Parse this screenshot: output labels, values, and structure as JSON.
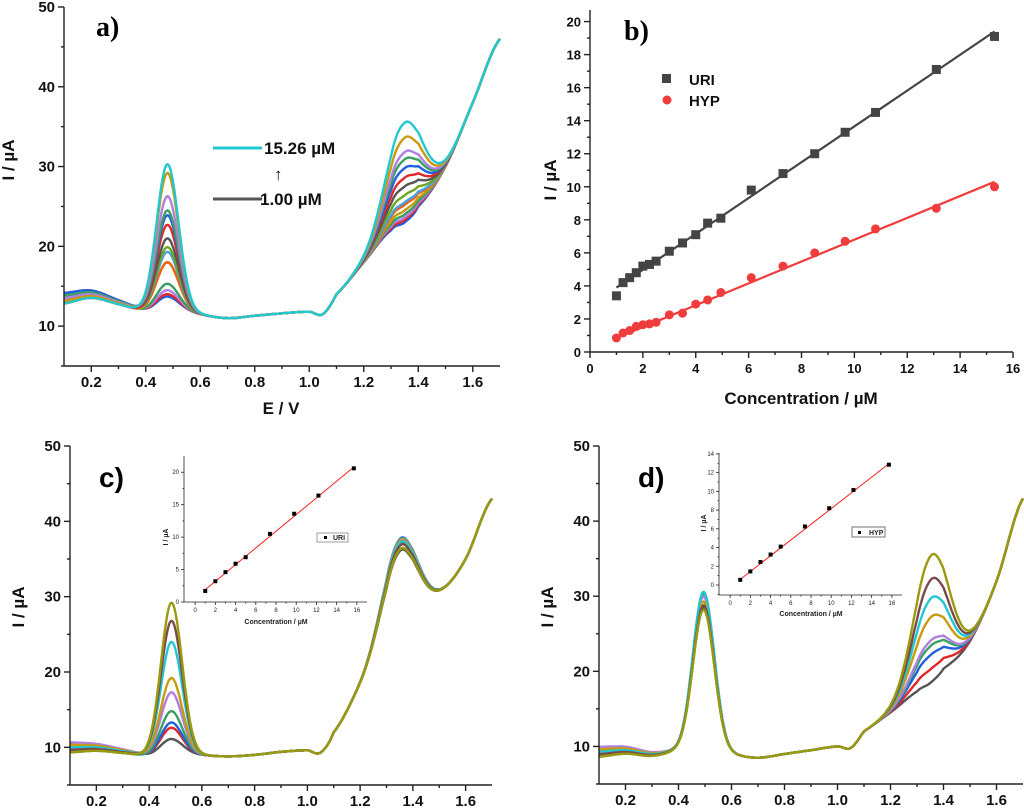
{
  "chart_data": [
    {
      "panel": "a)",
      "type": "line",
      "xlabel": "E / V",
      "ylabel": "I / µA",
      "xlim": [
        0.1,
        1.7
      ],
      "ylim": [
        5,
        50
      ],
      "xticks": [
        "0.2",
        "0.4",
        "0.6",
        "0.8",
        "1.0",
        "1.2",
        "1.4",
        "1.6"
      ],
      "yticks": [
        "10",
        "20",
        "30",
        "40",
        "50"
      ],
      "annotation_high": "15.26 µM",
      "annotation_arrow": "↑",
      "annotation_low": "1.00 µM",
      "annotation_high_color": "#22c8d0",
      "annotation_low_color": "#555555",
      "baseline": {
        "x": [
          0.1,
          0.2,
          0.3,
          0.4,
          0.48,
          0.6,
          0.7,
          0.8,
          0.9,
          1.0,
          1.05,
          1.1,
          1.2,
          1.3,
          1.35,
          1.4,
          1.5,
          1.6,
          1.7
        ],
        "y": [
          13.5,
          14,
          13,
          12,
          12.5,
          11.5,
          11,
          11.3,
          11.6,
          11.8,
          11.5,
          14,
          18,
          22,
          23,
          25,
          30,
          38,
          46
        ]
      },
      "peak1_potential_V": 0.48,
      "peak2_potential_V": 1.35,
      "series": [
        {
          "color": "#22c8d0",
          "peak1": 30.3,
          "peak2": 35.5
        },
        {
          "color": "#c89b10",
          "peak1": 29.2,
          "peak2": 33.6
        },
        {
          "color": "#b07fe0",
          "peak1": 26.3,
          "peak2": 31.8
        },
        {
          "color": "#3aa060",
          "peak1": 24.5,
          "peak2": 30.9
        },
        {
          "color": "#2060e0",
          "peak1": 23.9,
          "peak2": 29.8
        },
        {
          "color": "#e02828",
          "peak1": 22.7,
          "peak2": 28.6
        },
        {
          "color": "#555555",
          "peak1": 21.0,
          "peak2": 27.5
        },
        {
          "color": "#6aa820",
          "peak1": 19.9,
          "peak2": 26.4
        },
        {
          "color": "#4aa0e0",
          "peak1": 19.3,
          "peak2": 25.5
        },
        {
          "color": "#f06010",
          "peak1": 18.0,
          "peak2": 25.2
        },
        {
          "color": "#c89b10",
          "peak1": 18.0,
          "peak2": 24.5
        },
        {
          "color": "#3aa060",
          "peak1": 15.3,
          "peak2": 24.0
        },
        {
          "color": "#b07fe0",
          "peak1": 14.5,
          "peak2": 23.6
        },
        {
          "color": "#e02828",
          "peak1": 14.0,
          "peak2": 23.3
        },
        {
          "color": "#2060e0",
          "peak1": 13.7,
          "peak2": 23.0
        }
      ]
    },
    {
      "panel": "b)",
      "type": "scatter",
      "xlabel": "Concentration / µM",
      "ylabel": "I / µA",
      "xlim": [
        0,
        16
      ],
      "ylim": [
        0,
        20.7
      ],
      "xticks": [
        "0",
        "2",
        "4",
        "6",
        "8",
        "10",
        "12",
        "14",
        "16"
      ],
      "yticks": [
        "0",
        "2",
        "4",
        "6",
        "8",
        "10",
        "12",
        "14",
        "16",
        "18",
        "20"
      ],
      "legend_position": "top-left",
      "series": [
        {
          "name": "URI",
          "marker": "square",
          "color": "#444444",
          "x": [
            1.0,
            1.25,
            1.5,
            1.75,
            2.0,
            2.25,
            2.5,
            3.0,
            3.5,
            4.0,
            4.45,
            4.95,
            6.1,
            7.3,
            8.5,
            9.65,
            10.8,
            13.1,
            15.3
          ],
          "y": [
            3.4,
            4.2,
            4.5,
            4.8,
            5.2,
            5.3,
            5.5,
            6.1,
            6.6,
            7.1,
            7.8,
            8.1,
            9.8,
            10.8,
            12.0,
            13.3,
            14.5,
            17.1,
            19.1
          ],
          "fit": {
            "x": [
              1.0,
              15.3
            ],
            "y": [
              3.9,
              19.4
            ]
          }
        },
        {
          "name": "HYP",
          "marker": "circle",
          "color": "#f03c3c",
          "x": [
            1.0,
            1.25,
            1.5,
            1.75,
            2.0,
            2.25,
            2.5,
            3.0,
            3.5,
            4.0,
            4.45,
            4.95,
            6.1,
            7.3,
            8.5,
            9.65,
            10.8,
            13.1,
            15.3
          ],
          "y": [
            0.85,
            1.15,
            1.3,
            1.55,
            1.65,
            1.7,
            1.8,
            2.25,
            2.35,
            2.9,
            3.15,
            3.6,
            4.5,
            5.2,
            6.0,
            6.7,
            7.45,
            8.7,
            10.0
          ],
          "fit": {
            "x": [
              1.0,
              15.3
            ],
            "y": [
              0.85,
              10.3
            ]
          }
        }
      ]
    },
    {
      "panel": "c)",
      "type": "line",
      "ylabel": "I / µA",
      "xlim": [
        0.1,
        1.7
      ],
      "ylim": [
        5,
        50
      ],
      "xticks": [
        "0.2",
        "0.4",
        "0.6",
        "0.8",
        "1.0",
        "1.2",
        "1.4",
        "1.6"
      ],
      "yticks": [
        "10",
        "20",
        "30",
        "40",
        "50"
      ],
      "baseline": {
        "x": [
          0.1,
          0.2,
          0.3,
          0.4,
          0.48,
          0.6,
          0.7,
          0.8,
          0.9,
          1.0,
          1.05,
          1.1,
          1.2,
          1.3,
          1.35,
          1.4,
          1.5,
          1.6,
          1.7
        ],
        "y": [
          10,
          10,
          9.5,
          9,
          9.5,
          9,
          8.8,
          9,
          9.4,
          9.6,
          9.3,
          12,
          18,
          24,
          26,
          27,
          30,
          35,
          43
        ]
      },
      "peak1_potential_V": 0.485,
      "peak2_potential_V": 1.355,
      "series": [
        {
          "color": "#9a9a10",
          "peak1": 29.2,
          "peak2": 36.4
        },
        {
          "color": "#7b4b4b",
          "peak1": 26.8,
          "peak2": 36.9
        },
        {
          "color": "#22c8d0",
          "peak1": 24.0,
          "peak2": 37.3
        },
        {
          "color": "#c89b10",
          "peak1": 19.2,
          "peak2": 37.5
        },
        {
          "color": "#b07fe0",
          "peak1": 17.3,
          "peak2": 37.6
        },
        {
          "color": "#3aa060",
          "peak1": 14.8,
          "peak2": 37.7
        },
        {
          "color": "#2060e0",
          "peak1": 13.3,
          "peak2": 37.8
        },
        {
          "color": "#e02828",
          "peak1": 12.6,
          "peak2": 37.2
        },
        {
          "color": "#555555",
          "peak1": 11.1,
          "peak2": 36.2
        }
      ],
      "inset": {
        "type": "scatter",
        "xlabel": "Concentration / µM",
        "ylabel": "I / µA",
        "xlim": [
          -1.1,
          17
        ],
        "ylim": [
          0,
          22.5
        ],
        "xticks": [
          "0",
          "2",
          "4",
          "6",
          "8",
          "10",
          "12",
          "14",
          "16"
        ],
        "yticks": [
          "0",
          "5",
          "10",
          "15",
          "20"
        ],
        "legend": "URI",
        "legend_position": "right",
        "x": [
          1,
          2,
          3,
          4,
          5,
          7.4,
          9.8,
          12.2,
          15.7
        ],
        "y": [
          1.7,
          3.2,
          4.6,
          5.9,
          6.9,
          10.5,
          13.6,
          16.4,
          20.6
        ],
        "fit": {
          "x": [
            1,
            15.7
          ],
          "y": [
            1.9,
            20.8
          ]
        },
        "marker_color": "#000000",
        "fit_color": "#ff2020"
      }
    },
    {
      "panel": "d)",
      "type": "line",
      "ylabel": "I / µA",
      "xlim": [
        0.1,
        1.7
      ],
      "ylim": [
        5,
        50
      ],
      "xticks": [
        "0.2",
        "0.4",
        "0.6",
        "0.8",
        "1.0",
        "1.2",
        "1.4",
        "1.6"
      ],
      "yticks": [
        "10",
        "20",
        "30",
        "40",
        "50"
      ],
      "baseline": {
        "x": [
          0.1,
          0.2,
          0.3,
          0.4,
          0.48,
          0.6,
          0.7,
          0.8,
          0.9,
          1.0,
          1.05,
          1.1,
          1.2,
          1.3,
          1.35,
          1.4,
          1.5,
          1.6,
          1.7
        ],
        "y": [
          9.3,
          9.5,
          9,
          9.5,
          10,
          9,
          8.5,
          9,
          9.5,
          10,
          9.8,
          12,
          14.5,
          17,
          18,
          20,
          24,
          32,
          43
        ]
      },
      "peak1_potential_V": 0.495,
      "peak2_potential_V": 1.355,
      "series": [
        {
          "color": "#9a9a10",
          "peak1": 28.2,
          "peak2": 35.5
        },
        {
          "color": "#7b4b4b",
          "peak1": 28.8,
          "peak2": 32.3
        },
        {
          "color": "#22c8d0",
          "peak1": 30.6,
          "peak2": 29.8
        },
        {
          "color": "#c89b10",
          "peak1": 29.3,
          "peak2": 27.3
        },
        {
          "color": "#b07fe0",
          "peak1": 30.0,
          "peak2": 24.2
        },
        {
          "color": "#3aa060",
          "peak1": 30.2,
          "peak2": 23.5
        },
        {
          "color": "#2060e0",
          "peak1": 30.3,
          "peak2": 22.3
        },
        {
          "color": "#e02828",
          "peak1": 30.5,
          "peak2": 20.4
        },
        {
          "color": "#555555",
          "peak1": 28.5,
          "peak2": 18.6
        }
      ],
      "inset": {
        "type": "scatter",
        "xlabel": "Concentration / µM",
        "ylabel": "I / µA",
        "xlim": [
          -1.1,
          17
        ],
        "ylim": [
          -1.07,
          14.1
        ],
        "xticks": [
          "0",
          "2",
          "4",
          "6",
          "8",
          "10",
          "12",
          "14",
          "16"
        ],
        "yticks": [
          "0",
          "2",
          "4",
          "6",
          "8",
          "10",
          "12",
          "14"
        ],
        "legend": "HYP",
        "legend_position": "right",
        "x": [
          1,
          2,
          3,
          4,
          5,
          7.4,
          9.8,
          12.2,
          15.7
        ],
        "y": [
          0.55,
          1.45,
          2.45,
          3.25,
          4.1,
          6.25,
          8.2,
          10.15,
          12.85
        ],
        "fit": {
          "x": [
            1,
            15.7
          ],
          "y": [
            0.6,
            12.95
          ]
        },
        "marker_color": "#000000",
        "fit_color": "#ff2020"
      }
    }
  ]
}
